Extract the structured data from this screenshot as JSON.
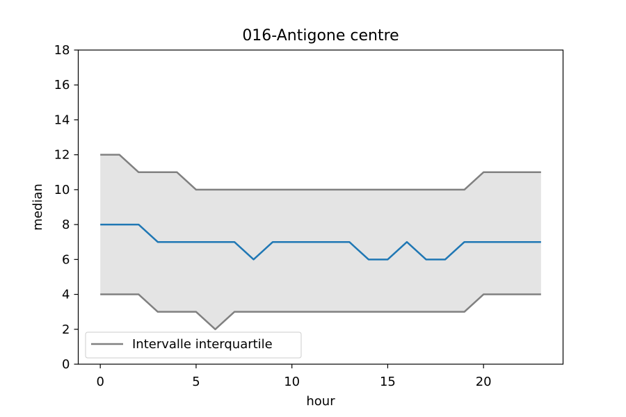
{
  "chart_data": {
    "type": "line",
    "title": "016-Antigone centre",
    "xlabel": "hour",
    "ylabel": "median",
    "xlim": [
      -1.15,
      24.15
    ],
    "ylim": [
      0,
      18
    ],
    "xticks": [
      0,
      5,
      10,
      15,
      20
    ],
    "yticks": [
      0,
      2,
      4,
      6,
      8,
      10,
      12,
      14,
      16,
      18
    ],
    "x": [
      0,
      1,
      2,
      3,
      4,
      5,
      6,
      7,
      8,
      9,
      10,
      11,
      12,
      13,
      14,
      15,
      16,
      17,
      18,
      19,
      20,
      21,
      22,
      23
    ],
    "series": [
      {
        "role": "median",
        "color": "#1f77b4",
        "values": [
          8,
          8,
          8,
          7,
          7,
          7,
          7,
          7,
          6,
          7,
          7,
          7,
          7,
          7,
          6,
          6,
          7,
          6,
          6,
          7,
          7,
          7,
          7,
          7
        ]
      },
      {
        "role": "upper quartile",
        "color": "#808080",
        "values": [
          12,
          12,
          11,
          11,
          11,
          10,
          10,
          10,
          10,
          10,
          10,
          10,
          10,
          10,
          10,
          10,
          10,
          10,
          10,
          10,
          11,
          11,
          11,
          11
        ]
      },
      {
        "role": "lower quartile",
        "color": "#808080",
        "values": [
          4,
          4,
          4,
          3,
          3,
          3,
          2,
          3,
          3,
          3,
          3,
          3,
          3,
          3,
          3,
          3,
          3,
          3,
          3,
          3,
          4,
          4,
          4,
          4
        ]
      }
    ],
    "band": {
      "between": [
        "lower quartile",
        "upper quartile"
      ],
      "color": "#e4e4e4"
    },
    "legend": {
      "placement": "lower-left",
      "label": "Intervalle interquartile",
      "color": "#808080"
    },
    "grid": false
  }
}
